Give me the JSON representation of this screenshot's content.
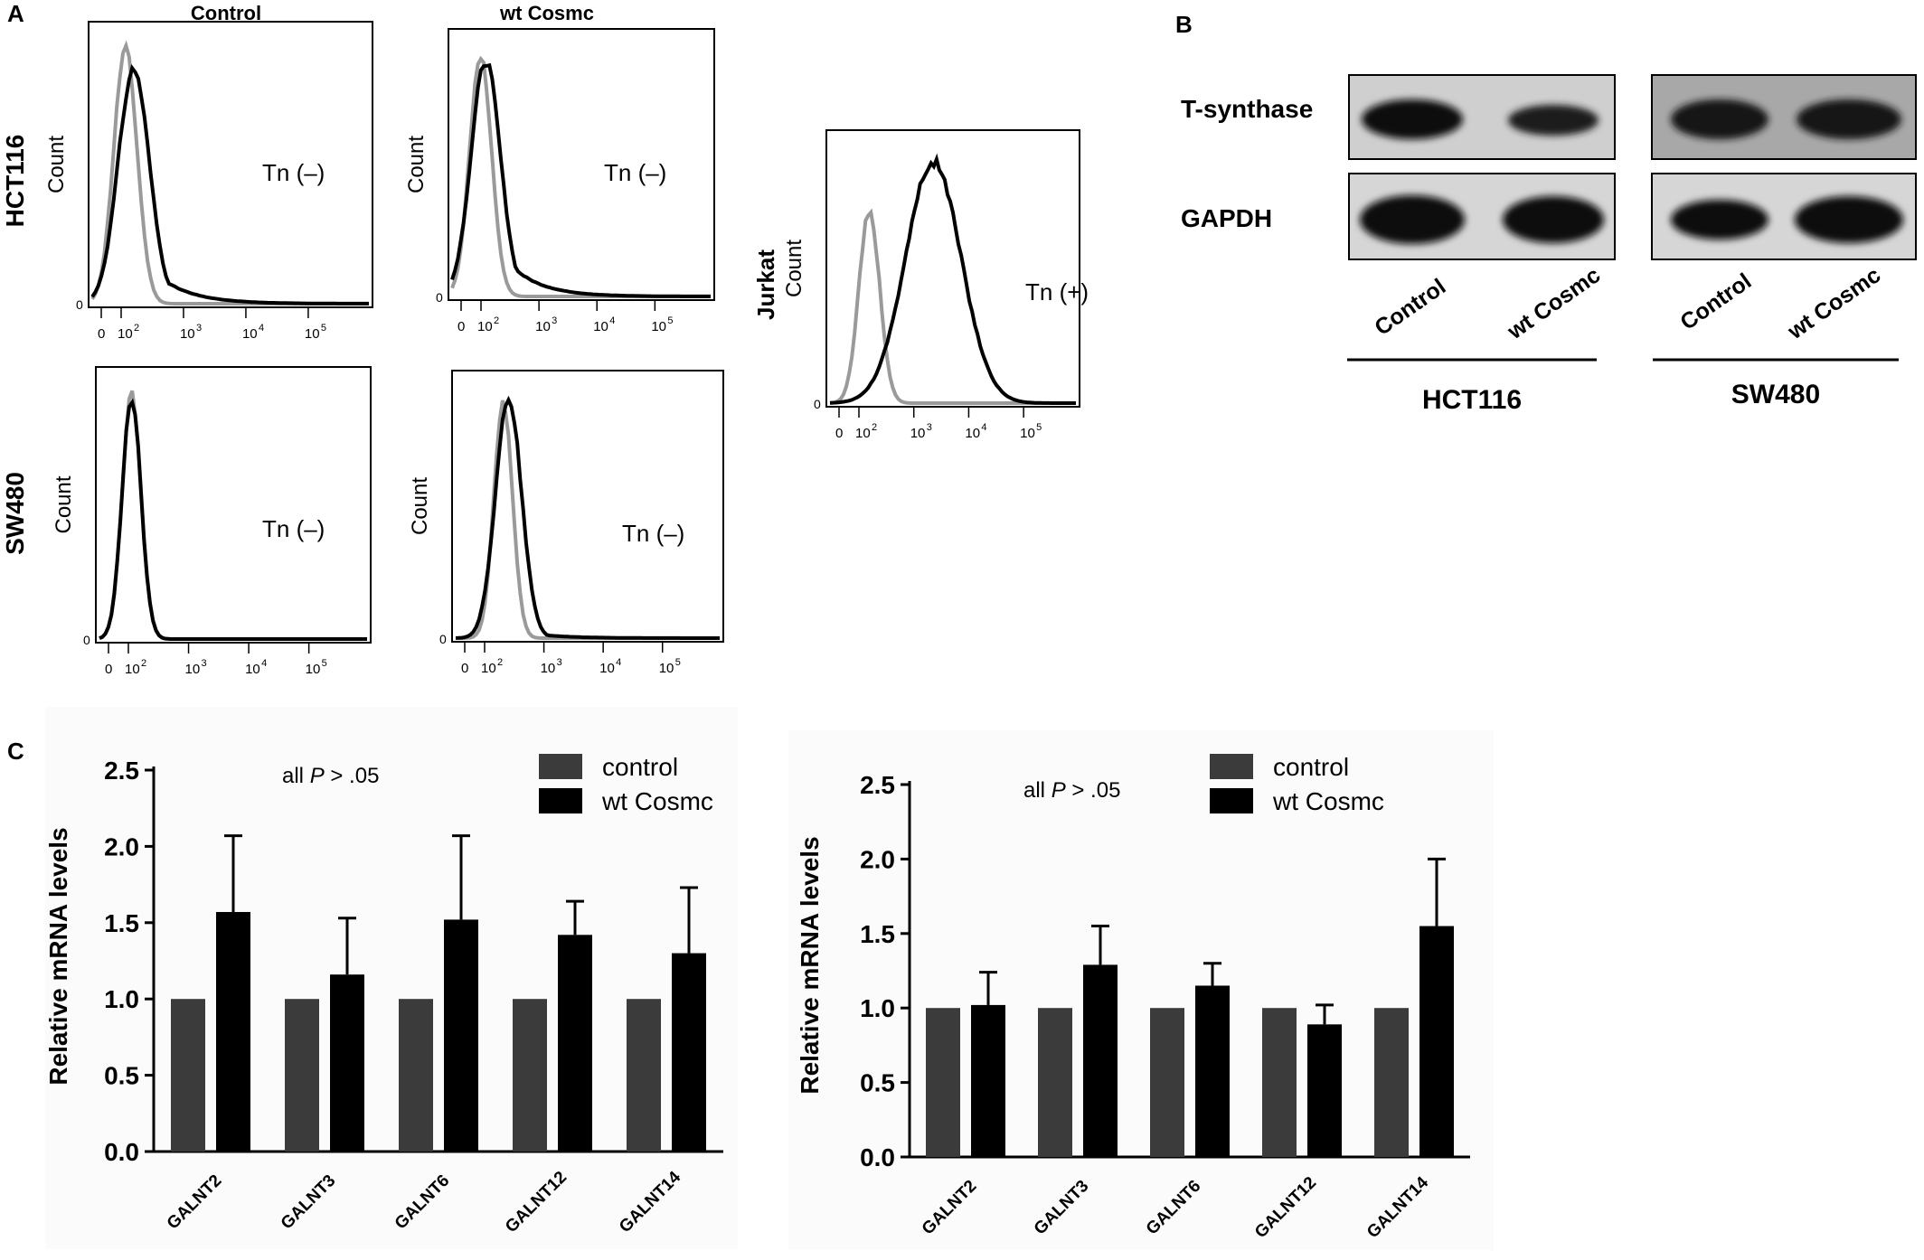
{
  "panel_labels": {
    "a": "A",
    "b": "B",
    "c": "C"
  },
  "flow": {
    "col_titles": [
      "Control",
      "wt Cosmc"
    ],
    "row_labels": [
      "HCT116",
      "SW480"
    ],
    "jurkat_label": "Jurkat",
    "count_label": "Count",
    "tn_negative": "Tn (–)",
    "tn_positive": "Tn (+)",
    "tick_labels": [
      "0",
      "10",
      "10",
      "10",
      "10"
    ],
    "tick_exponents": [
      "",
      "2",
      "3",
      "4",
      "5"
    ],
    "zero_label": "0",
    "line_colors": {
      "isotype": "#9a9a9a",
      "sample": "#000000"
    }
  },
  "western": {
    "row_labels": [
      "T-synthase",
      "GAPDH"
    ],
    "lane_labels": [
      "Control",
      "wt Cosmc"
    ],
    "group_labels": [
      "HCT116",
      "SW480"
    ]
  },
  "chart_data": [
    {
      "type": "bar",
      "categories": [
        "GALNT2",
        "GALNT3",
        "GALNT6",
        "GALNT12",
        "GALNT14"
      ],
      "series": [
        {
          "name": "control",
          "values": [
            1.0,
            1.0,
            1.0,
            1.0,
            1.0
          ],
          "color": "#3b3b3b"
        },
        {
          "name": "wt Cosmc",
          "values": [
            1.57,
            1.16,
            1.52,
            1.42,
            1.3
          ],
          "errors": [
            0.5,
            0.37,
            0.55,
            0.22,
            0.43
          ],
          "color": "#000000"
        }
      ],
      "ylabel": "Relative mRNA levels",
      "ylim": [
        0,
        2.5
      ],
      "yticks": [
        "0.0",
        "0.5",
        "1.0",
        "1.5",
        "2.0",
        "2.5"
      ],
      "annotation_pre": "all ",
      "annotation_p": "P",
      "annotation_post": " > .05",
      "legend_position": "top-right"
    },
    {
      "type": "bar",
      "categories": [
        "GALNT2",
        "GALNT3",
        "GALNT6",
        "GALNT12",
        "GALNT14"
      ],
      "series": [
        {
          "name": "control",
          "values": [
            1.0,
            1.0,
            1.0,
            1.0,
            1.0
          ],
          "color": "#3b3b3b"
        },
        {
          "name": "wt Cosmc",
          "values": [
            1.02,
            1.29,
            1.15,
            0.89,
            1.55
          ],
          "errors": [
            0.22,
            0.26,
            0.15,
            0.13,
            0.45
          ],
          "color": "#000000"
        }
      ],
      "ylabel": "Relative mRNA levels",
      "ylim": [
        0,
        2.5
      ],
      "yticks": [
        "0.0",
        "0.5",
        "1.0",
        "1.5",
        "2.0",
        "2.5"
      ],
      "annotation_pre": "all ",
      "annotation_p": "P",
      "annotation_post": " > .05",
      "legend_position": "top-right"
    }
  ]
}
